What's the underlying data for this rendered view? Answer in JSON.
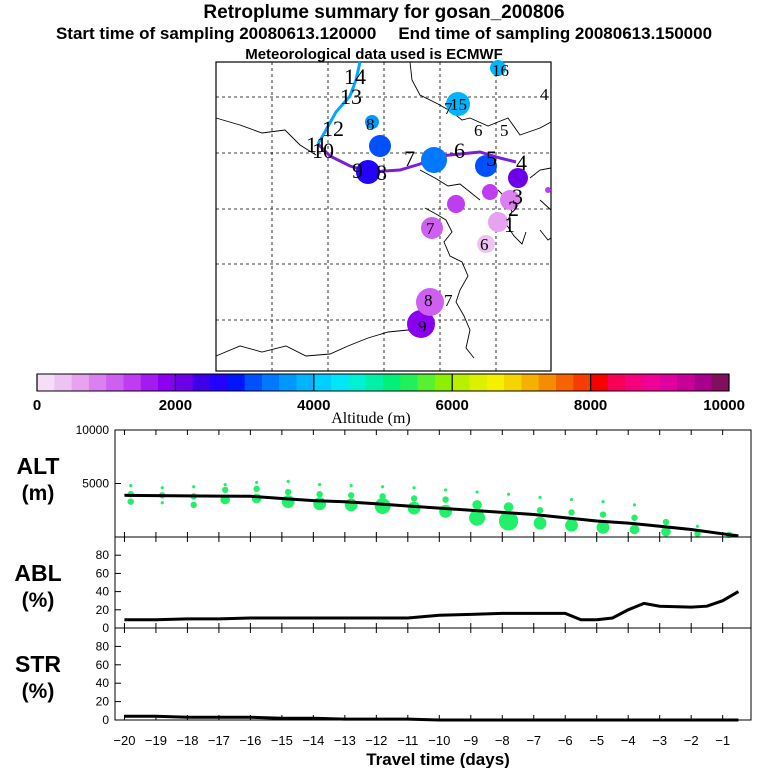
{
  "header": {
    "title": "Retroplume summary for gosan_200806",
    "start_time": "Start time of sampling 20080613.120000",
    "end_time": "End time of sampling 20080613.150000",
    "met_data": "Meteorological data used is ECMWF"
  },
  "colors": {
    "trajectory": "#7a1fd6",
    "marker_green": "#22f06a",
    "line": "#000000"
  },
  "map": {
    "day_labels": [
      "14",
      "13",
      "12",
      "11",
      "10",
      "9",
      "8",
      "7",
      "6",
      "5",
      "4",
      "3",
      "2",
      "1",
      "16",
      "15",
      "8",
      "7",
      "6",
      "5",
      "4",
      "7",
      "6",
      "8",
      "7",
      "9"
    ]
  },
  "colorbar": {
    "colors": [
      "#f6ddf8",
      "#efc2f4",
      "#e7a3f0",
      "#dc7ff0",
      "#cf5ff0",
      "#c03cf0",
      "#a31bf0",
      "#8a00f0",
      "#6c00e8",
      "#3d00e8",
      "#2400ff",
      "#0016ff",
      "#0050ff",
      "#0078ff",
      "#0098ff",
      "#00b4ff",
      "#00d0ff",
      "#00e6f6",
      "#00f0d4",
      "#00f0aa",
      "#00f07c",
      "#22f05a",
      "#5af032",
      "#8cf000",
      "#b8f000",
      "#dcf000",
      "#f6f000",
      "#f6d400",
      "#f6b000",
      "#f68c00",
      "#f66400",
      "#f63c00",
      "#f60000",
      "#f6005a",
      "#f6007c",
      "#f00096",
      "#e000a0",
      "#c80096",
      "#a8008c",
      "#80105e"
    ],
    "tick_labels": [
      "0",
      "2000",
      "4000",
      "6000",
      "8000",
      "10000"
    ],
    "label": "Altitude (m)"
  },
  "chart_data": [
    {
      "type": "line",
      "panel": "ALT",
      "ylabel": "ALT (m)",
      "ylim": [
        0,
        10000
      ],
      "yticks": [
        5000,
        10000
      ],
      "x": [
        -20,
        -19,
        -18,
        -17,
        -16,
        -15,
        -14,
        -13,
        -12,
        -11,
        -10,
        -9,
        -8,
        -7,
        -6,
        -5,
        -4,
        -3,
        -2,
        -1,
        -0.5
      ],
      "series": [
        {
          "name": "mean altitude",
          "values": [
            3900,
            3870,
            3840,
            3820,
            3800,
            3600,
            3400,
            3300,
            3100,
            2900,
            2700,
            2500,
            2300,
            2100,
            1800,
            1500,
            1300,
            1000,
            700,
            300,
            100
          ]
        }
      ],
      "points": [
        [
          -19.8,
          4000,
          2
        ],
        [
          -19.8,
          3300,
          2
        ],
        [
          -19.8,
          4800,
          1
        ],
        [
          -18.8,
          3900,
          2
        ],
        [
          -18.8,
          4600,
          1
        ],
        [
          -18.8,
          3200,
          1
        ],
        [
          -17.8,
          3800,
          2
        ],
        [
          -17.8,
          3000,
          2
        ],
        [
          -17.8,
          4700,
          1
        ],
        [
          -16.8,
          3500,
          3
        ],
        [
          -16.8,
          4400,
          2
        ],
        [
          -16.8,
          4900,
          1
        ],
        [
          -15.8,
          3600,
          3
        ],
        [
          -15.8,
          4500,
          2
        ],
        [
          -15.8,
          5100,
          1
        ],
        [
          -14.8,
          3300,
          4
        ],
        [
          -14.8,
          4200,
          2
        ],
        [
          -14.8,
          5200,
          1
        ],
        [
          -13.8,
          3100,
          4
        ],
        [
          -13.8,
          4000,
          2
        ],
        [
          -13.8,
          4900,
          1
        ],
        [
          -12.8,
          3000,
          4
        ],
        [
          -12.8,
          3900,
          2
        ],
        [
          -12.8,
          4800,
          1
        ],
        [
          -11.8,
          2900,
          5
        ],
        [
          -11.8,
          3800,
          2
        ],
        [
          -11.8,
          4700,
          1
        ],
        [
          -10.8,
          2700,
          4
        ],
        [
          -10.8,
          3600,
          2
        ],
        [
          -10.8,
          4600,
          1
        ],
        [
          -9.8,
          2400,
          4
        ],
        [
          -9.8,
          3500,
          2
        ],
        [
          -9.8,
          4400,
          1
        ],
        [
          -8.8,
          1800,
          5
        ],
        [
          -8.8,
          3000,
          3
        ],
        [
          -8.8,
          4200,
          1
        ],
        [
          -7.8,
          1500,
          6
        ],
        [
          -7.8,
          2800,
          3
        ],
        [
          -7.8,
          4000,
          1
        ],
        [
          -6.8,
          1300,
          4
        ],
        [
          -6.8,
          2500,
          2
        ],
        [
          -6.8,
          3700,
          1
        ],
        [
          -5.8,
          1100,
          4
        ],
        [
          -5.8,
          2300,
          2
        ],
        [
          -5.8,
          3500,
          1
        ],
        [
          -4.8,
          900,
          4
        ],
        [
          -4.8,
          2100,
          2
        ],
        [
          -4.8,
          3300,
          1
        ],
        [
          -3.8,
          700,
          3
        ],
        [
          -3.8,
          1800,
          2
        ],
        [
          -3.8,
          3000,
          1
        ],
        [
          -2.8,
          500,
          3
        ],
        [
          -2.8,
          1400,
          2
        ],
        [
          -1.8,
          300,
          2
        ],
        [
          -1.8,
          1000,
          1
        ],
        [
          -0.8,
          200,
          2
        ]
      ]
    },
    {
      "type": "line",
      "panel": "ABL",
      "ylabel": "ABL (%)",
      "ylim": [
        0,
        100
      ],
      "yticks": [
        0,
        20,
        40,
        60,
        80
      ],
      "x": [
        -20,
        -19,
        -18,
        -17,
        -16,
        -15,
        -14,
        -13,
        -12,
        -11,
        -10,
        -9,
        -8,
        -7,
        -6,
        -5.5,
        -5,
        -4.5,
        -4,
        -3.5,
        -3,
        -2,
        -1.5,
        -1,
        -0.5
      ],
      "series": [
        {
          "name": "fraction in ABL",
          "values": [
            9,
            9,
            10,
            10,
            11,
            11,
            11,
            11,
            11,
            11,
            14,
            15,
            16,
            16,
            16,
            9,
            9,
            11,
            20,
            27,
            24,
            23,
            24,
            30,
            40
          ]
        }
      ]
    },
    {
      "type": "line",
      "panel": "STR",
      "ylabel": "STR (%)",
      "ylim": [
        0,
        100
      ],
      "yticks": [
        0,
        20,
        40,
        60,
        80
      ],
      "x": [
        -20,
        -19,
        -18,
        -17,
        -16,
        -15,
        -14,
        -13,
        -12,
        -11,
        -10,
        -9,
        -8,
        -7,
        -6,
        -5,
        -4,
        -3,
        -2,
        -1,
        -0.5
      ],
      "series": [
        {
          "name": "fraction in stratosphere",
          "values": [
            4,
            4,
            3,
            3,
            3,
            2,
            2,
            1,
            1,
            1,
            0,
            0,
            0,
            0,
            0,
            0,
            0,
            0,
            0,
            0,
            0
          ]
        }
      ]
    }
  ],
  "xaxis": {
    "ticks": [
      -20,
      -19,
      -18,
      -17,
      -16,
      -15,
      -14,
      -13,
      -12,
      -11,
      -10,
      -9,
      -8,
      -7,
      -6,
      -5,
      -4,
      -3,
      -2,
      -1
    ],
    "tick_labels": [
      "−20",
      "−19",
      "−18",
      "−17",
      "−16",
      "−15",
      "−14",
      "−13",
      "−12",
      "−11",
      "−10",
      "−9",
      "−8",
      "−7",
      "−6",
      "−5",
      "−4",
      "−3",
      "−2",
      "−1"
    ],
    "label": "Travel time (days)"
  },
  "panels": {
    "alt": {
      "line1": "ALT",
      "line2": "(m)"
    },
    "abl": {
      "line1": "ABL",
      "line2": "(%)"
    },
    "str": {
      "line1": "STR",
      "line2": "(%)"
    }
  }
}
